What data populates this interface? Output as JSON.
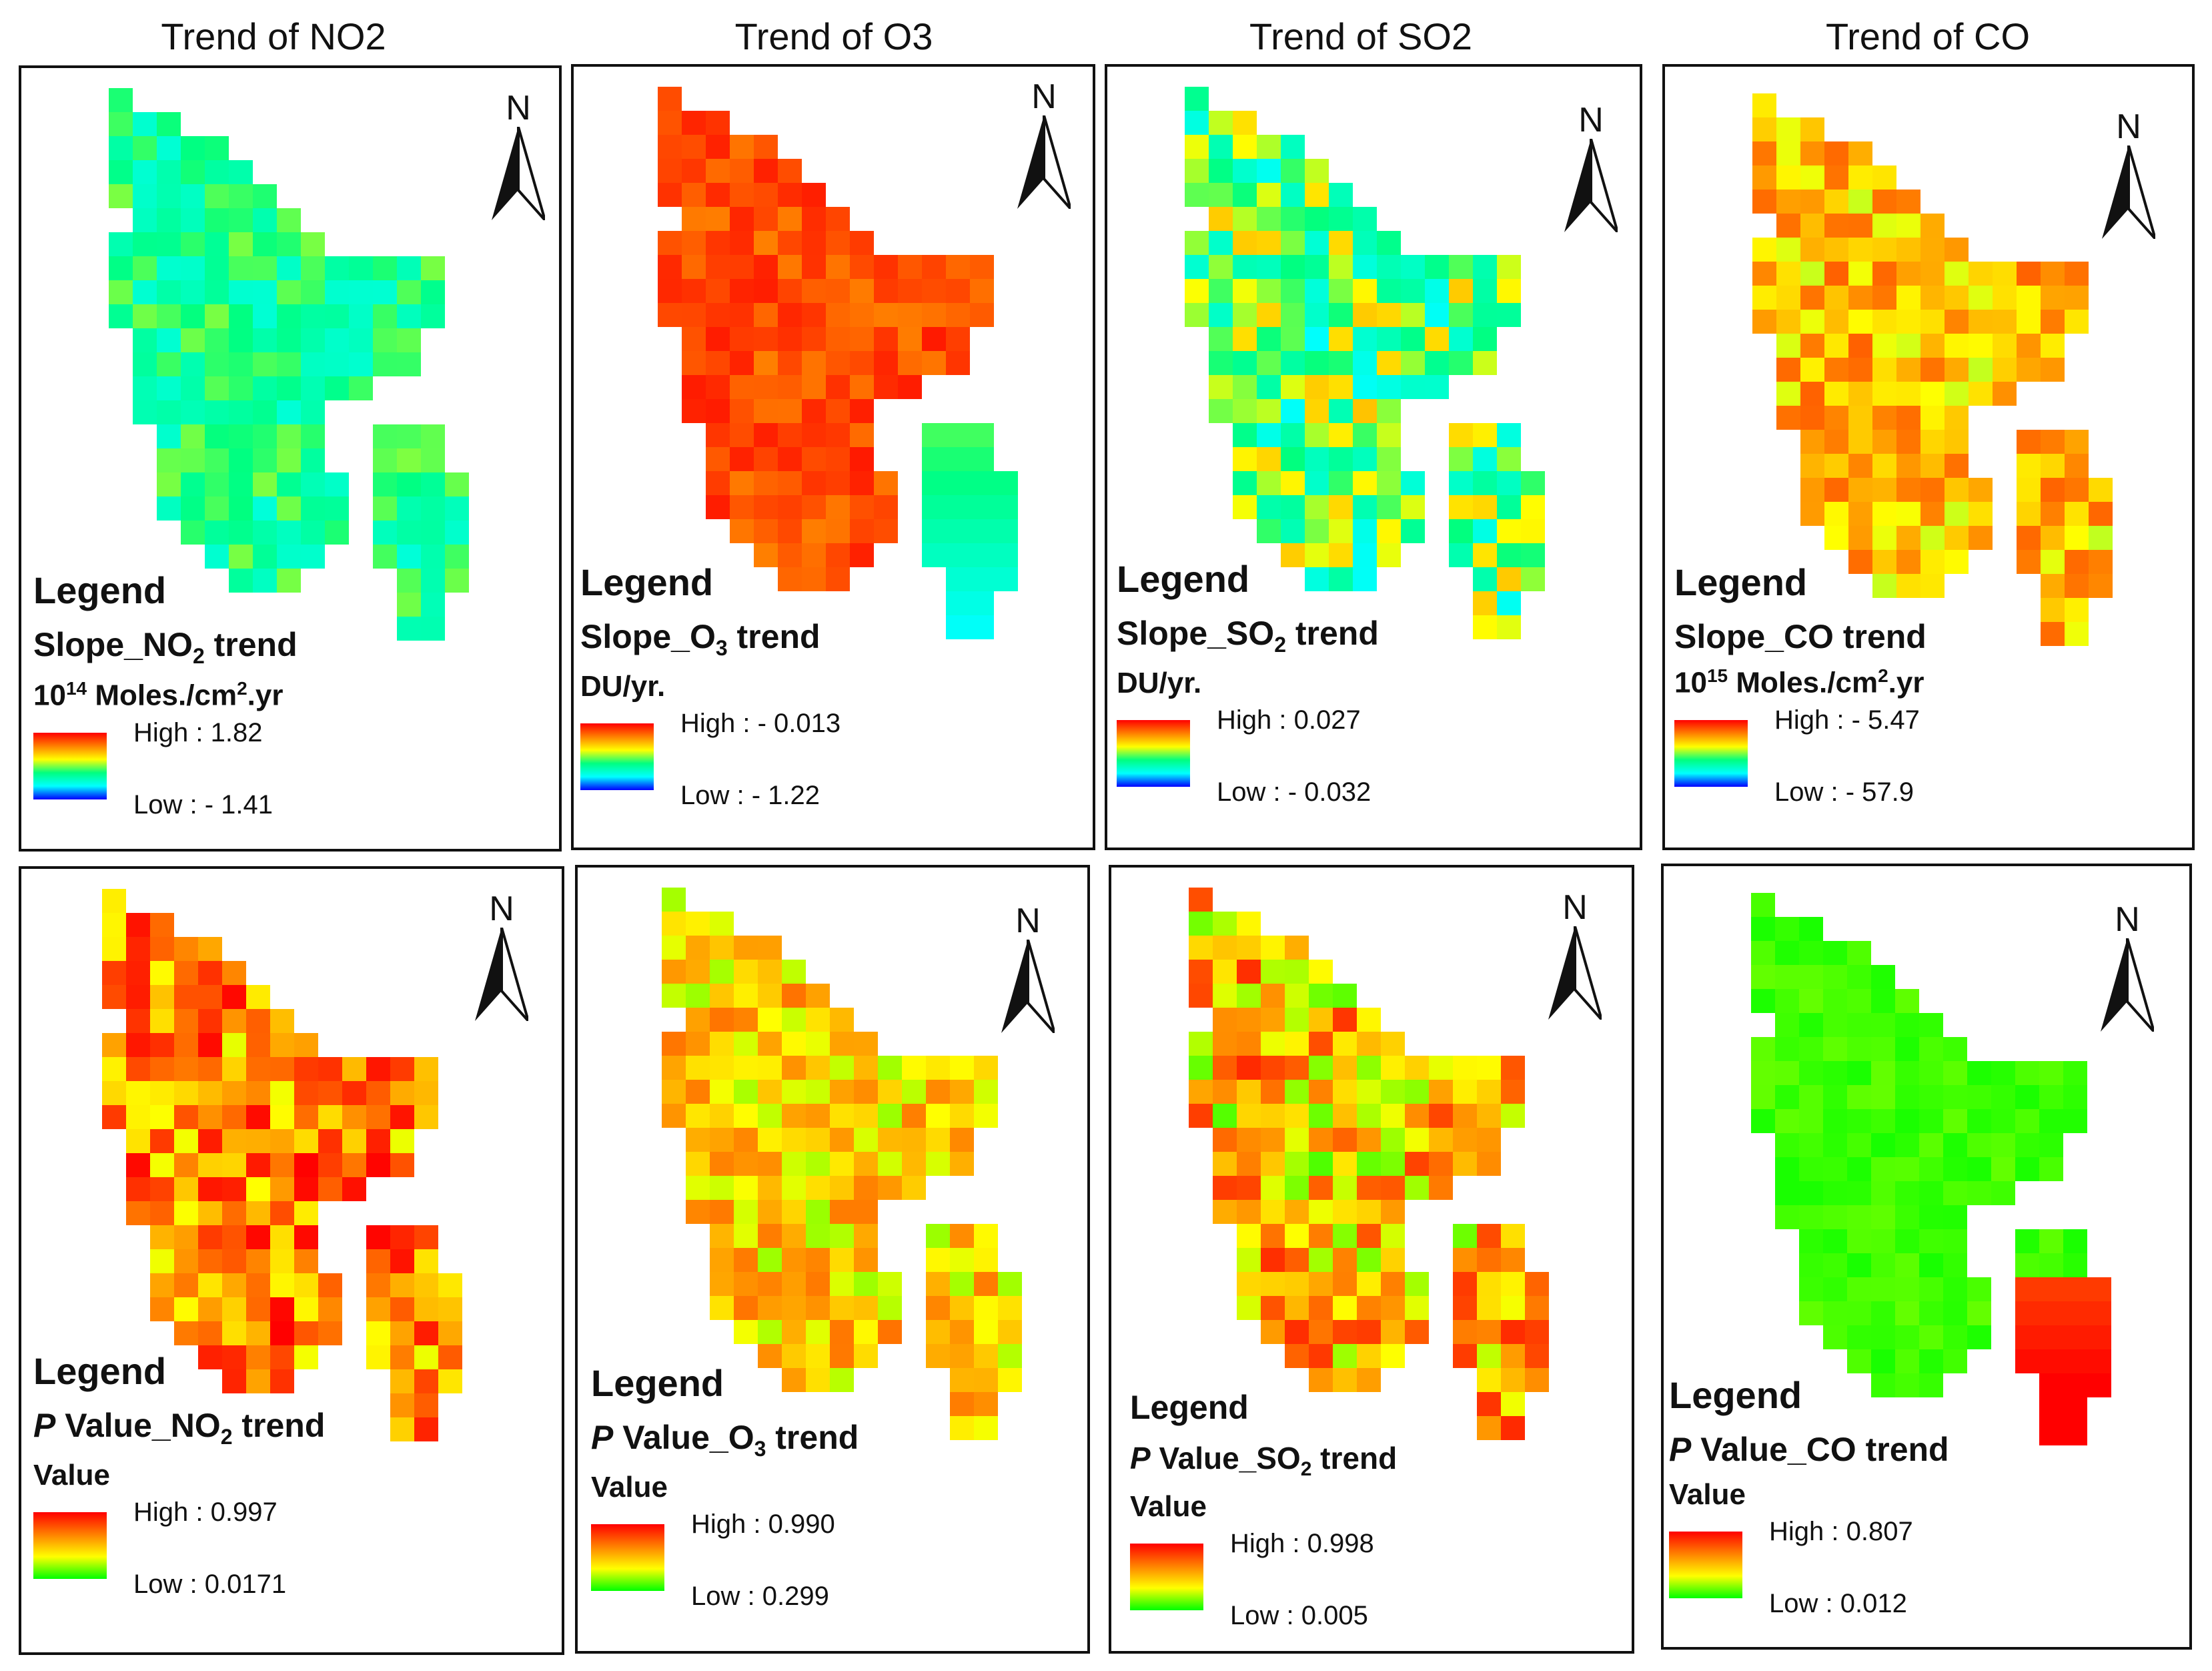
{
  "columns": [
    {
      "title": "Trend of NO2"
    },
    {
      "title": "Trend of O3"
    },
    {
      "title": "Trend of SO2"
    },
    {
      "title": "Trend of CO"
    }
  ],
  "north_label": "N",
  "panels": [
    {
      "legend_title": "Legend",
      "sub_pre": "Slope_NO",
      "sub_sub": "2",
      "sub_post": " trend",
      "unit_pre": "10",
      "unit_sup1": "14",
      "unit_mid": " Moles./cm",
      "unit_sup2": "2",
      "unit_post": ".yr",
      "high": "High : 1.82",
      "low": "Low : - 1.41"
    },
    {
      "legend_title": "Legend",
      "sub_pre": "Slope_O",
      "sub_sub": "3",
      "sub_post": " trend",
      "unit_text": "DU/yr.",
      "high": "High : - 0.013",
      "low": "Low : - 1.22"
    },
    {
      "legend_title": "Legend",
      "sub_pre": "Slope_SO",
      "sub_sub": "2",
      "sub_post": " trend",
      "unit_text": "DU/yr.",
      "high": "High : 0.027",
      "low": "Low : - 0.032"
    },
    {
      "legend_title": "Legend",
      "sub_pre": "Slope_CO trend",
      "sub_sub": "",
      "sub_post": "",
      "unit_pre": "10",
      "unit_sup1": "15",
      "unit_mid": " Moles./cm",
      "unit_sup2": "2",
      "unit_post": ".yr",
      "high": "High : - 5.47",
      "low": "Low : - 57.9"
    },
    {
      "legend_title": "Legend",
      "p_letter": "P",
      "sub_pre": " Value_NO",
      "sub_sub": "2",
      "sub_post": " trend",
      "unit_text": "Value",
      "high": "High : 0.997",
      "low": "Low : 0.0171"
    },
    {
      "legend_title": "Legend",
      "p_letter": "P",
      "sub_pre": " Value_O",
      "sub_sub": "3",
      "sub_post": " trend",
      "unit_text": "Value",
      "high": "High : 0.990",
      "low": "Low : 0.299"
    },
    {
      "legend_title": "Legend",
      "p_letter": "P",
      "sub_pre": " Value_SO",
      "sub_sub": "2",
      "sub_post": " trend",
      "unit_text": "Value",
      "high": "High : 0.998",
      "low": "Low : 0.005"
    },
    {
      "legend_title": "Legend",
      "p_letter": "P",
      "sub_pre": " Value_CO trend",
      "sub_sub": "",
      "sub_post": "",
      "unit_text": "Value",
      "high": "High : 0.807",
      "low": "Low : 0.012"
    }
  ],
  "colors": {
    "slope_ramp": [
      "#ff0000",
      "#ff8000",
      "#ffff00",
      "#00ff80",
      "#00ffff",
      "#0000ff"
    ],
    "p_ramp": [
      "#ff0000",
      "#ff8000",
      "#ffff00",
      "#00ff00"
    ],
    "frame": "#111111"
  }
}
